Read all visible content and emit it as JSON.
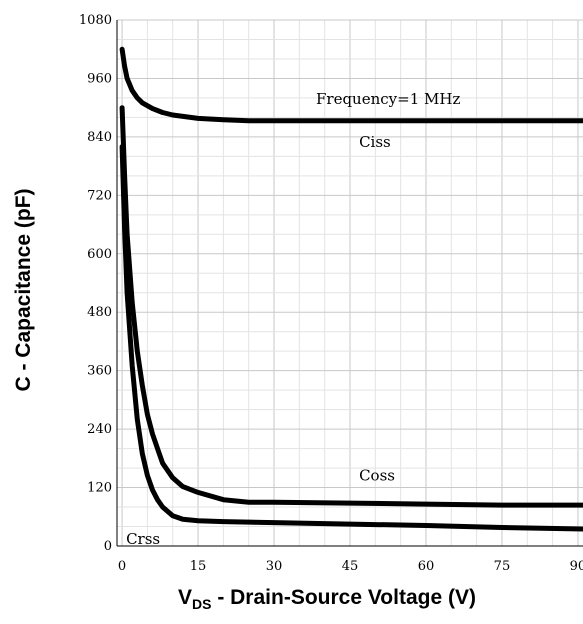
{
  "chart_data": {
    "type": "line",
    "title": "",
    "xlabel": {
      "main": "V",
      "sub": "DS",
      "rest": " - Drain-Source Voltage (V)"
    },
    "ylabel": "C - Capacitance (pF)",
    "xlim": [
      -1,
      91
    ],
    "ylim": [
      0,
      1080
    ],
    "x_ticks": [
      0,
      15,
      30,
      45,
      60,
      75,
      90
    ],
    "y_ticks": [
      0,
      120,
      240,
      360,
      480,
      600,
      720,
      840,
      960,
      1080
    ],
    "grid": true,
    "annotation": "Frequency=1 MHz",
    "series": [
      {
        "name": "Ciss",
        "x": [
          0,
          0.5,
          1,
          2,
          3,
          4,
          6,
          8,
          10,
          15,
          20,
          25,
          30,
          45,
          60,
          75,
          91
        ],
        "y": [
          1020,
          985,
          960,
          935,
          920,
          910,
          898,
          890,
          885,
          878,
          875,
          873,
          873,
          873,
          873,
          873,
          873
        ]
      },
      {
        "name": "Coss",
        "x": [
          0,
          0.5,
          1,
          2,
          3,
          4,
          5,
          6,
          7,
          8,
          10,
          12,
          15,
          20,
          25,
          30,
          45,
          60,
          75,
          91
        ],
        "y": [
          900,
          760,
          640,
          500,
          400,
          330,
          270,
          230,
          200,
          170,
          140,
          122,
          110,
          95,
          90,
          90,
          88,
          86,
          84,
          84
        ]
      },
      {
        "name": "Crss",
        "x": [
          0,
          0.5,
          1,
          2,
          3,
          4,
          5,
          6,
          7,
          8,
          10,
          12,
          15,
          20,
          25,
          30,
          45,
          60,
          75,
          91
        ],
        "y": [
          820,
          650,
          520,
          370,
          260,
          190,
          145,
          115,
          95,
          80,
          62,
          55,
          52,
          50,
          49,
          48,
          45,
          42,
          38,
          35
        ]
      }
    ],
    "series_labels": [
      {
        "name": "Ciss",
        "x": 46,
        "y": 815
      },
      {
        "name": "Coss",
        "x": 46,
        "y": 130
      },
      {
        "name": "Crss",
        "x": 0,
        "y": 0
      }
    ]
  }
}
